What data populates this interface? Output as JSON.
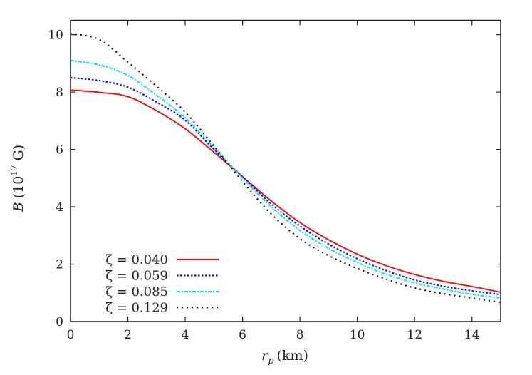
{
  "chart_data": {
    "type": "line",
    "title": "",
    "xlabel": "r_p (km)",
    "xlabel_main": "r",
    "xlabel_sub": "p",
    "xlabel_unit": "(km)",
    "ylabel_main": "B",
    "ylabel_unit_pre": "(10",
    "ylabel_unit_exp": "17",
    "ylabel_unit_post": " G)",
    "xlim": [
      0,
      15
    ],
    "ylim": [
      0,
      10.5
    ],
    "xticks": [
      0,
      2,
      4,
      6,
      8,
      10,
      12,
      14
    ],
    "yticks": [
      0,
      2,
      4,
      6,
      8,
      10
    ],
    "grid": false,
    "legend_position": "bottom-left",
    "x": [
      0,
      1,
      2,
      3,
      4,
      5,
      6,
      7,
      8,
      9,
      10,
      11,
      12,
      13,
      14,
      15
    ],
    "series": [
      {
        "name": "ζ = 0.040",
        "color": "#ff0000",
        "dash": "solid",
        "values": [
          8.07,
          7.99,
          7.84,
          7.35,
          6.72,
          5.9,
          5.05,
          4.2,
          3.45,
          2.85,
          2.35,
          1.95,
          1.64,
          1.4,
          1.22,
          1.02
        ]
      },
      {
        "name": "ζ = 0.059",
        "color": "#0000ff",
        "dash": "dotted",
        "values": [
          8.5,
          8.4,
          8.17,
          7.65,
          7.02,
          6.0,
          5.05,
          4.1,
          3.33,
          2.7,
          2.19,
          1.78,
          1.45,
          1.23,
          1.07,
          0.94
        ]
      },
      {
        "name": "ζ = 0.085",
        "color": "#00e5ee",
        "dash": "dashdot",
        "values": [
          9.1,
          8.95,
          8.58,
          7.89,
          7.1,
          6.07,
          5.0,
          4.0,
          3.18,
          2.55,
          2.06,
          1.65,
          1.35,
          1.13,
          0.95,
          0.82
        ]
      },
      {
        "name": "ζ = 0.129",
        "color": "#000000",
        "dash": "dotted-sparse",
        "values": [
          10.03,
          9.83,
          9.04,
          8.2,
          7.3,
          6.12,
          4.88,
          3.75,
          2.89,
          2.3,
          1.85,
          1.48,
          1.17,
          0.97,
          0.82,
          0.67
        ]
      }
    ]
  }
}
